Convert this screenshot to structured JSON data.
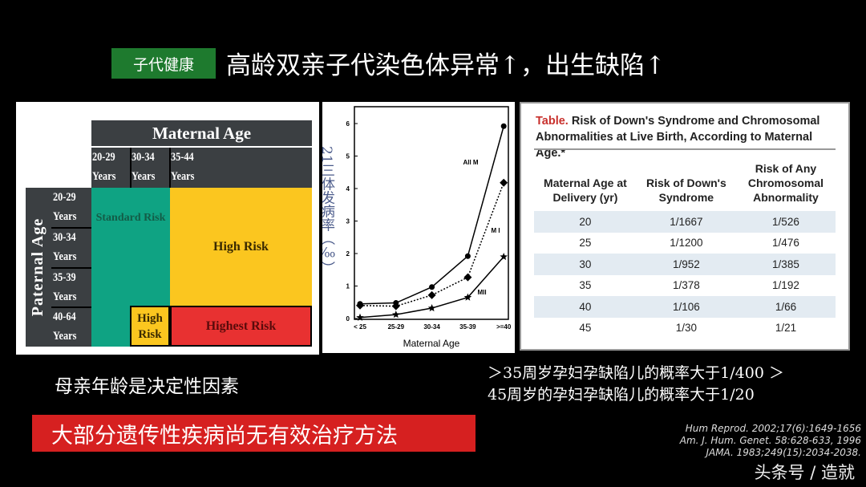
{
  "header": {
    "tag": "子代健康",
    "title": "高龄双亲子代染色体异常↑，出生缺陷↑"
  },
  "risk_grid": {
    "maternal_title": "Maternal Age",
    "paternal_title": "Paternal Age",
    "maternal_cols": [
      [
        "20-29",
        "Years"
      ],
      [
        "30-34",
        "Years"
      ],
      [
        "35-44",
        "Years"
      ]
    ],
    "paternal_rows": [
      [
        "20-29",
        "Years"
      ],
      [
        "30-34",
        "Years"
      ],
      [
        "35-39",
        "Years"
      ],
      [
        "40-64",
        "Years"
      ]
    ],
    "standard": "Standard Risk",
    "high": "High Risk",
    "high_small": "High Risk",
    "highest": "Highest Risk",
    "colors": {
      "standard": "#0fa383",
      "high": "#fbc61f",
      "highest": "#e83131",
      "header": "#3b3f42"
    }
  },
  "chart_data": {
    "type": "line",
    "ylabel": "21三体发病率（‰）",
    "xlabel": "Maternal Age",
    "categories": [
      "< 25",
      "25-29",
      "30-34",
      "35-39",
      ">=40"
    ],
    "ylim": [
      0,
      6
    ],
    "yticks": [
      0,
      1,
      2,
      3,
      4,
      5,
      6
    ],
    "series": [
      {
        "name": "All M",
        "values": [
          0.45,
          0.48,
          0.97,
          1.92,
          5.92
        ],
        "marker": "circle",
        "dash": false
      },
      {
        "name": "M I",
        "values": [
          0.4,
          0.38,
          0.72,
          1.27,
          4.18
        ],
        "marker": "diamond",
        "dash": true
      },
      {
        "name": "MII",
        "values": [
          0.03,
          0.12,
          0.32,
          0.65,
          1.9
        ],
        "marker": "star",
        "dash": false
      }
    ]
  },
  "table": {
    "title_label": "Table.",
    "title": "Risk of Down's Syndrome and Chromosomal Abnormalities at Live Birth, According to Maternal Age.*",
    "headers": [
      "Maternal Age at Delivery (yr)",
      "Risk of Down's Syndrome",
      "Risk of Any Chromosomal Abnormality"
    ],
    "rows": [
      [
        "20",
        "1/1667",
        "1/526"
      ],
      [
        "25",
        "1/1200",
        "1/476"
      ],
      [
        "30",
        "1/952",
        "1/385"
      ],
      [
        "35",
        "1/378",
        "1/192"
      ],
      [
        "40",
        "1/106",
        "1/66"
      ],
      [
        "45",
        "1/30",
        "1/21"
      ]
    ]
  },
  "notes": {
    "left": "母亲年龄是决定性因素",
    "right1": "＞35周岁孕妇孕缺陷儿的概率大于1/400 ＞",
    "right2": "45周岁的孕妇孕缺陷儿的概率大于1/20",
    "banner": "大部分遗传性疾病尚无有效治疗方法"
  },
  "refs": [
    "Hum Reprod. 2002;17(6):1649-1656",
    "Am. J. Hum. Genet. 58:628-633, 1996",
    "JAMA. 1983;249(15):2034-2038."
  ],
  "watermark": "头条号 / 造就"
}
